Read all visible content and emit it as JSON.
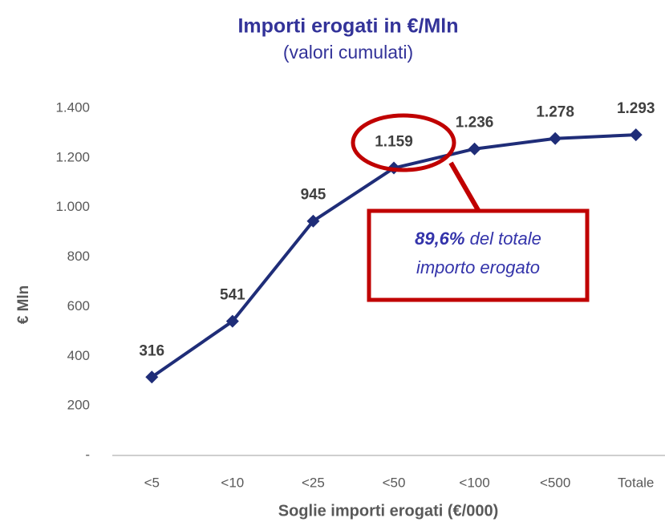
{
  "chart_data": {
    "type": "line",
    "title": "Importi erogati in €/Mln",
    "subtitle": "(valori cumulati)",
    "x_label": "Soglie importi erogati (€/000)",
    "y_label": "€ Mln",
    "categories": [
      "<5",
      "<10",
      "<25",
      "<50",
      "<100",
      "<500",
      "Totale"
    ],
    "values": [
      316,
      541,
      945,
      1159,
      1236,
      1278,
      1293
    ],
    "value_labels": [
      "316",
      "541",
      "945",
      "1.159",
      "1.236",
      "1.278",
      "1.293"
    ],
    "color": "#1f2d78",
    "ylim": [
      0,
      1400
    ],
    "yticks": [
      {
        "value": 0,
        "label": "-"
      },
      200,
      400,
      600,
      800,
      {
        "value": 1000,
        "label": "1.000"
      },
      {
        "value": 1200,
        "label": "1.200"
      },
      {
        "value": 1400,
        "label": "1.400"
      }
    ],
    "grid": false,
    "annotation": {
      "emphasis": "89,6%",
      "lines": [
        "del totale",
        "importo erogato"
      ]
    }
  }
}
